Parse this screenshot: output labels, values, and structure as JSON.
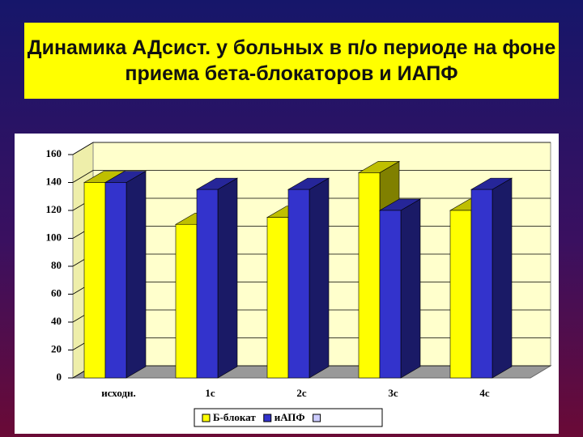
{
  "chart_data": {
    "type": "bar3d",
    "title": "Динамика АДсист. у больных в п/о периоде на фоне приема бета-блокаторов и ИАПФ",
    "categories": [
      "исходн.",
      "1с",
      "2с",
      "3с",
      "4с"
    ],
    "series": [
      {
        "name": "Б-блокат",
        "color": "#ffff00",
        "values": [
          140,
          110,
          115,
          147,
          120
        ]
      },
      {
        "name": "иАПФ",
        "color": "#3333cc",
        "values": [
          140,
          135,
          135,
          120,
          135
        ]
      }
    ],
    "ylim": [
      0,
      160
    ],
    "yticks": [
      0,
      20,
      40,
      60,
      80,
      100,
      120,
      140,
      160
    ],
    "grid": true,
    "legend": "bottom"
  }
}
